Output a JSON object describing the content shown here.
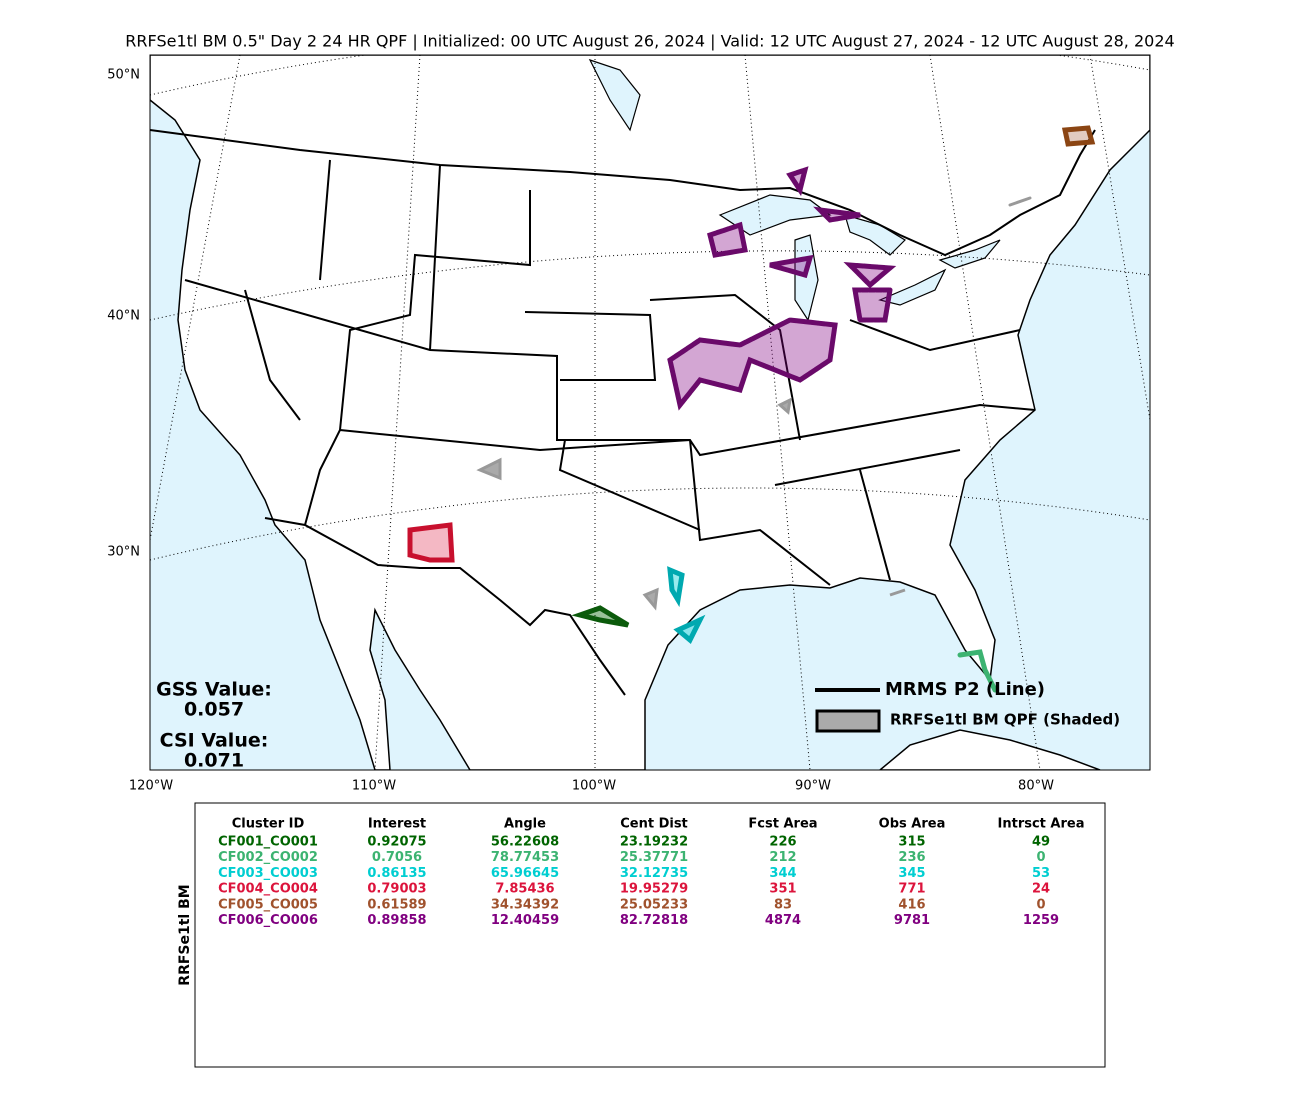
{
  "title": "RRFSe1tl BM 0.5\" Day 2 24 HR QPF | Initialized: 00 UTC August 26, 2024 | Valid: 12 UTC August 27, 2024 - 12 UTC August 28, 2024",
  "map": {
    "lat_labels": [
      "50°N",
      "40°N",
      "30°N"
    ],
    "lon_labels": [
      "120°W",
      "110°W",
      "100°W",
      "90°W",
      "80°W"
    ],
    "gss_label": "GSS Value:",
    "gss_value": "0.057",
    "csi_label": "CSI Value:",
    "csi_value": "0.071",
    "legend": [
      {
        "label": "MRMS P2 (Line)"
      },
      {
        "label": "RRFSe1tl BM QPF (Shaded)"
      }
    ]
  },
  "table": {
    "side_label": "RRFSe1tl BM",
    "columns": [
      "Cluster ID",
      "Interest",
      "Angle",
      "Cent Dist",
      "Fcst Area",
      "Obs Area",
      "Intrsct Area"
    ],
    "row_colors": [
      "#006400",
      "#3cb371",
      "#00ced1",
      "#dc143c",
      "#a0522d",
      "#800080"
    ],
    "rows": [
      [
        "CF001_CO001",
        "0.92075",
        "56.22608",
        "23.19232",
        "226",
        "315",
        "49"
      ],
      [
        "CF002_CO002",
        "0.7056",
        "78.77453",
        "25.37771",
        "212",
        "236",
        "0"
      ],
      [
        "CF003_CO003",
        "0.86135",
        "65.96645",
        "32.12735",
        "344",
        "345",
        "53"
      ],
      [
        "CF004_CO004",
        "0.79003",
        "7.85436",
        "19.95279",
        "351",
        "771",
        "24"
      ],
      [
        "CF005_CO005",
        "0.61589",
        "34.34392",
        "25.05233",
        "83",
        "416",
        "0"
      ],
      [
        "CF006_CO006",
        "0.89858",
        "12.40459",
        "82.72818",
        "4874",
        "9781",
        "1259"
      ]
    ]
  }
}
